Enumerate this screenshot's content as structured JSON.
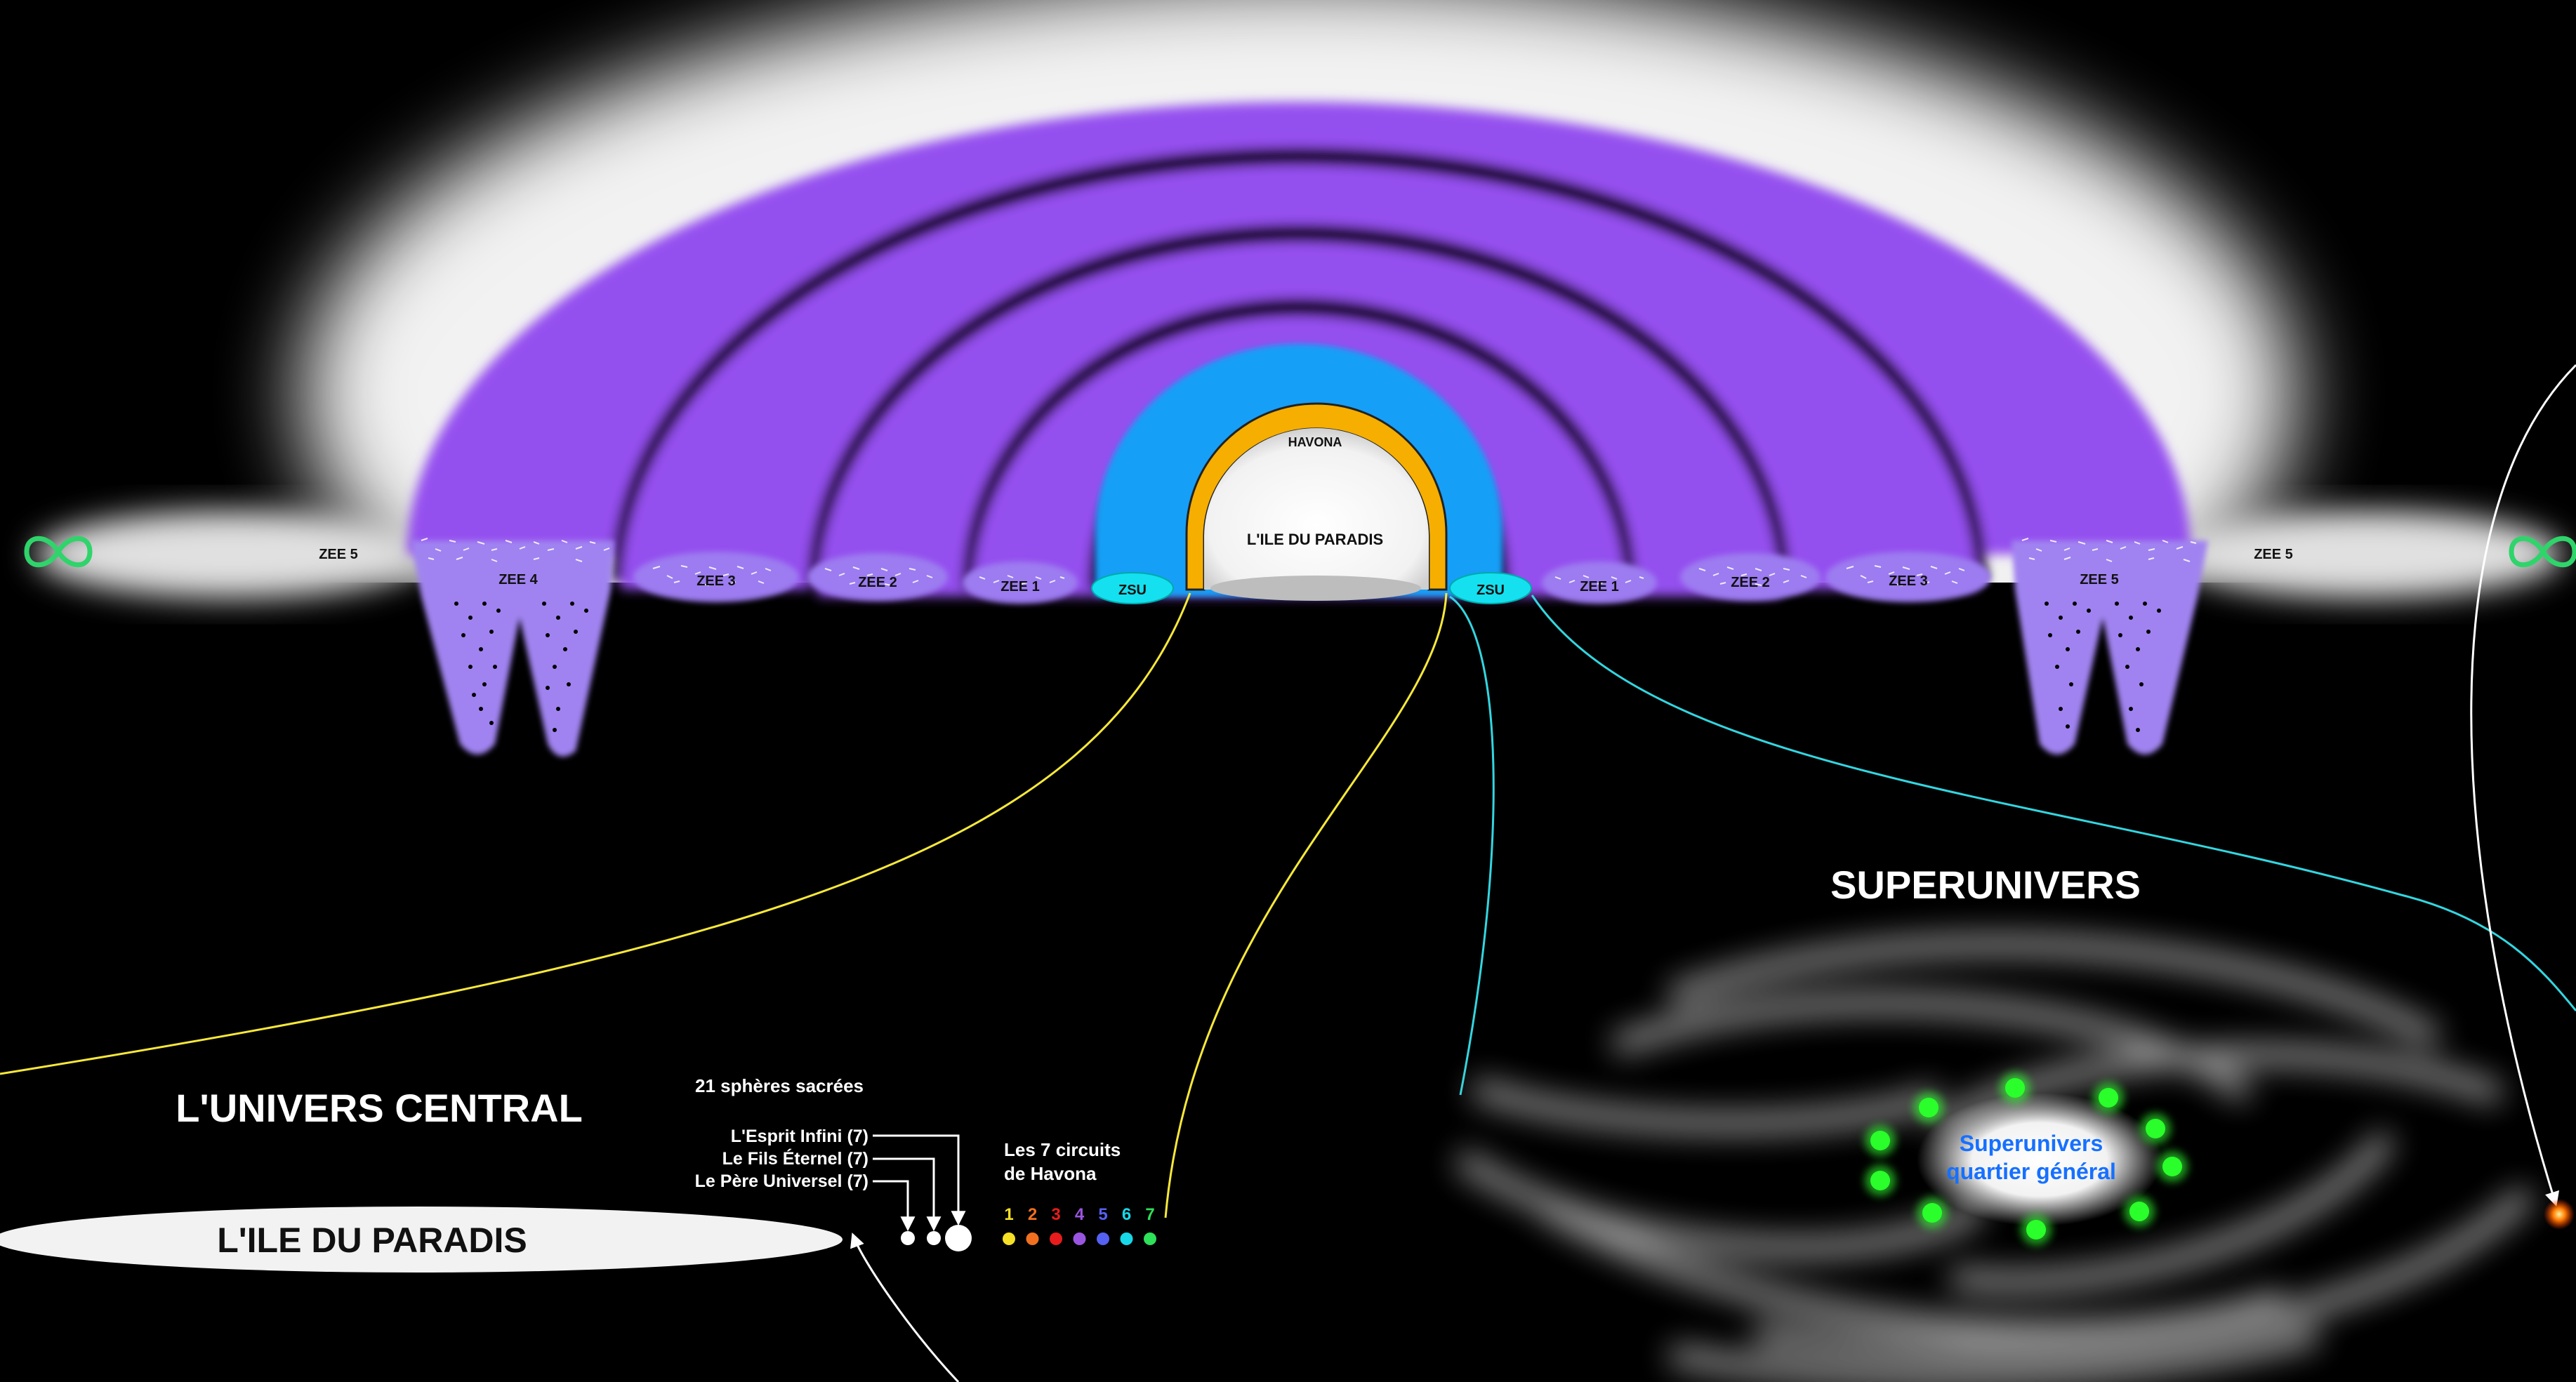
{
  "colors": {
    "background": "#000000",
    "zee_violet": "#9450ef",
    "zee_light_violet": "#a083f0",
    "havona_blue": "#139ff7",
    "havona_gold": "#f6ae00",
    "zsu_cyan": "#14e0f0",
    "yellow_line": "#f7e83a",
    "cyan_line": "#33d6e0",
    "infinity_green": "#2fd46b",
    "hq_green": "#33ff33",
    "hq_text_blue": "#1670ff"
  },
  "labels": {
    "zee5_left": "ZEE 5",
    "zee4_left": "ZEE 4",
    "zee3_left": "ZEE 3",
    "zee2_left": "ZEE 2",
    "zee1_left": "ZEE 1",
    "zsu_left": "ZSU",
    "havona": "HAVONA",
    "paradise_isle": "L'ILE DU PARADIS",
    "zsu_right": "ZSU",
    "zee1_right": "ZEE 1",
    "zee2_right": "ZEE 2",
    "zee3_right": "ZEE 3",
    "zee5_right_dotted": "ZEE 5",
    "zee5_right": "ZEE 5"
  },
  "central_universe": {
    "title": "L'UNIVERS CENTRAL",
    "sacred_spheres": "21 sphères sacrées",
    "infinite_spirit": "L'Esprit Infini (7)",
    "eternal_son": "Le Fils Éternel (7)",
    "universal_father": "Le Père Universel (7)",
    "paradise_island": "L'ILE DU PARADIS",
    "circuits_line1": "Les 7 circuits",
    "circuits_line2": "de Havona",
    "circuits": [
      {
        "number": "1",
        "color": "#f5e025"
      },
      {
        "number": "2",
        "color": "#f07020"
      },
      {
        "number": "3",
        "color": "#e81c1c"
      },
      {
        "number": "4",
        "color": "#9a55e0"
      },
      {
        "number": "5",
        "color": "#5561f2"
      },
      {
        "number": "6",
        "color": "#18d8e8"
      },
      {
        "number": "7",
        "color": "#2ee05a"
      }
    ]
  },
  "superuniverse": {
    "title": "SUPERUNIVERS",
    "hq_line1": "Superunivers",
    "hq_line2": "quartier général"
  },
  "icons": {
    "infinity_left": "infinity-icon",
    "infinity_right": "infinity-icon"
  }
}
